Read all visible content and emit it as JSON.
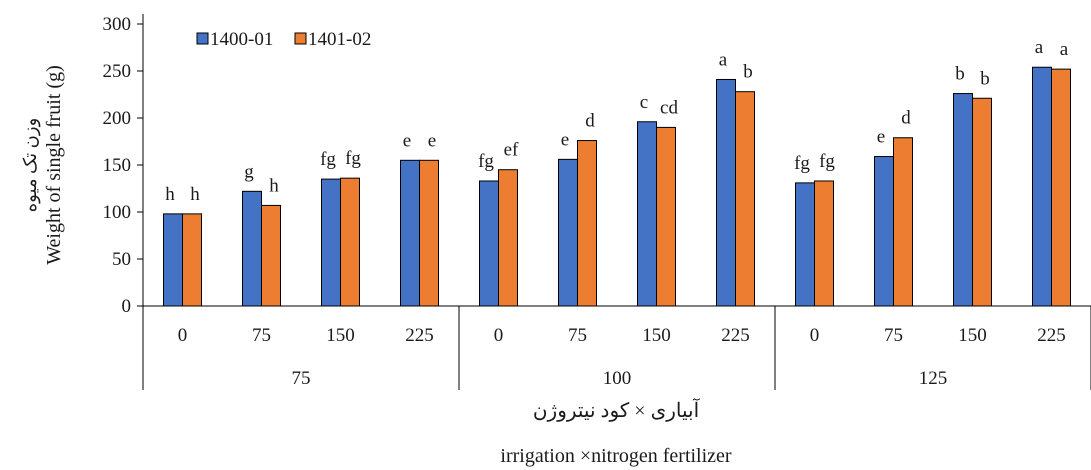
{
  "chart_data": {
    "type": "bar",
    "ylabel": "Weight of single fruit (g)",
    "ylabel_fa": "وزن تک میوه",
    "xlabel": "irrigation ×nitrogen fertilizer",
    "xlabel_fa": "آبیاری × کود نیتروژن",
    "ylim": [
      0,
      300
    ],
    "yticks": [
      0,
      50,
      100,
      150,
      200,
      250,
      300
    ],
    "grid": false,
    "legend_position": "top-left",
    "groups": [
      "75",
      "100",
      "125"
    ],
    "categories": [
      "0",
      "75",
      "150",
      "225",
      "0",
      "75",
      "150",
      "225",
      "0",
      "75",
      "150",
      "225"
    ],
    "series": [
      {
        "name": "1400-01",
        "color": "#4472C4",
        "values": [
          98,
          122,
          135,
          155,
          133,
          156,
          196,
          241,
          131,
          159,
          226,
          254
        ],
        "letters": [
          "h",
          "g",
          "fg",
          "e",
          "fg",
          "e",
          "c",
          "a",
          "fg",
          "e",
          "b",
          "a"
        ]
      },
      {
        "name": "1401-02",
        "color": "#ED7D31",
        "values": [
          98,
          107,
          136,
          155,
          145,
          176,
          190,
          228,
          133,
          179,
          221,
          252
        ],
        "letters": [
          "h",
          "h",
          "fg",
          "e",
          "ef",
          "d",
          "cd",
          "b",
          "fg",
          "d",
          "b",
          "a"
        ]
      }
    ]
  }
}
